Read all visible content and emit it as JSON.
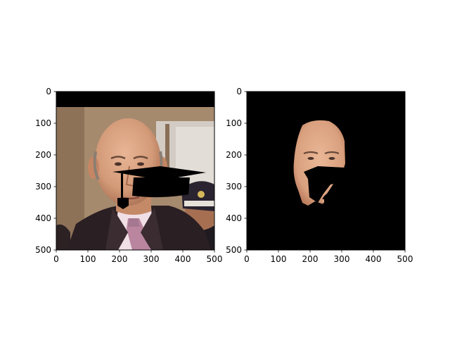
{
  "chart_data": [
    {
      "type": "image",
      "content": "photo of a bald man in a dark suit with a black graduation-cap overlay; black band across the top rows",
      "xlim": [
        0,
        500
      ],
      "ylim": [
        500,
        0
      ],
      "x_ticks": [
        "0",
        "100",
        "200",
        "300",
        "400",
        "500"
      ],
      "y_ticks": [
        "0",
        "100",
        "200",
        "300",
        "400",
        "500"
      ],
      "grid": false
    },
    {
      "type": "image",
      "content": "segmented face mask on black background with a black cap-shaped cutout",
      "xlim": [
        0,
        500
      ],
      "ylim": [
        500,
        0
      ],
      "x_ticks": [
        "0",
        "100",
        "200",
        "300",
        "400",
        "500"
      ],
      "y_ticks": [
        "0",
        "100",
        "200",
        "300",
        "400",
        "500"
      ],
      "grid": false
    }
  ],
  "colors": {
    "skin": "#d9a07e",
    "skin_shadow": "#b97a5c",
    "suit": "#2a1f22",
    "shirt": "#f1dfe6",
    "tie": "#b9859f",
    "wall": "#a68a6e",
    "door": "#d3ccc4",
    "background": "#000000"
  }
}
